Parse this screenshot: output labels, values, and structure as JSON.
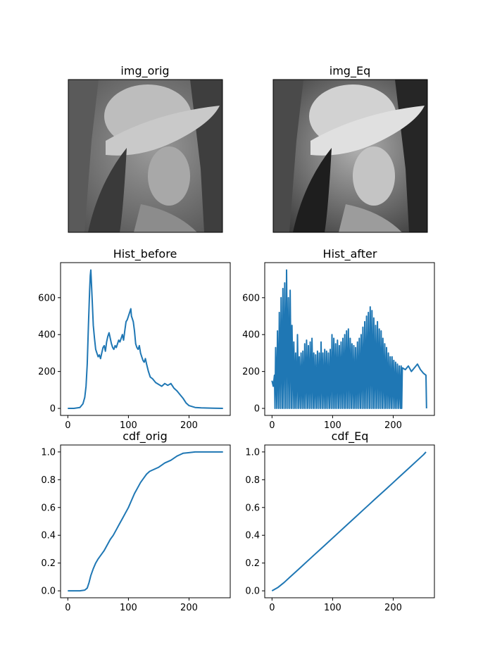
{
  "figure": {
    "titles": {
      "img_orig": "img_orig",
      "img_eq": "img_Eq",
      "hist_before": "Hist_before",
      "hist_after": "Hist_after",
      "cdf_orig": "cdf_orig",
      "cdf_eq": "cdf_Eq"
    },
    "line_color": "#1f77b4"
  },
  "chart_data": [
    {
      "id": "hist_before",
      "type": "line",
      "title": "Hist_before",
      "xlim": [
        -12,
        268
      ],
      "ylim": [
        -38,
        790
      ],
      "xticks": [
        0,
        100,
        200
      ],
      "yticks": [
        0,
        200,
        400,
        600
      ],
      "series": [
        {
          "x": [
            0,
            10,
            20,
            25,
            28,
            30,
            32,
            34,
            36,
            37,
            38,
            40,
            42,
            44,
            46,
            48,
            50,
            52,
            54,
            56,
            58,
            60,
            62,
            64,
            66,
            68,
            70,
            72,
            74,
            76,
            78,
            80,
            82,
            84,
            86,
            88,
            90,
            92,
            94,
            96,
            98,
            100,
            102,
            104,
            105,
            106,
            108,
            110,
            112,
            114,
            116,
            118,
            120,
            122,
            124,
            126,
            128,
            130,
            133,
            136,
            140,
            145,
            150,
            155,
            160,
            165,
            170,
            175,
            180,
            185,
            190,
            195,
            200,
            210,
            220,
            240,
            256
          ],
          "y": [
            0,
            0,
            5,
            25,
            60,
            120,
            240,
            450,
            640,
            720,
            750,
            600,
            450,
            380,
            320,
            300,
            280,
            290,
            270,
            300,
            330,
            340,
            310,
            360,
            390,
            410,
            380,
            350,
            330,
            320,
            340,
            330,
            350,
            370,
            360,
            380,
            400,
            370,
            420,
            470,
            480,
            500,
            520,
            540,
            500,
            490,
            470,
            420,
            350,
            330,
            320,
            340,
            300,
            280,
            260,
            250,
            270,
            240,
            200,
            170,
            160,
            140,
            130,
            120,
            135,
            125,
            135,
            110,
            95,
            75,
            55,
            30,
            15,
            5,
            3,
            1,
            0
          ]
        }
      ]
    },
    {
      "id": "hist_after",
      "type": "line",
      "title": "Hist_after",
      "xlim": [
        -12,
        268
      ],
      "ylim": [
        -38,
        790
      ],
      "xticks": [
        0,
        100,
        200
      ],
      "yticks": [
        0,
        200,
        400,
        600
      ],
      "series": [
        {
          "x": [
            0,
            2,
            4,
            5,
            6,
            8,
            9,
            11,
            12,
            14,
            15,
            17,
            18,
            20,
            21,
            23,
            24,
            26,
            27,
            29,
            30,
            32,
            33,
            35,
            36,
            38,
            39,
            41,
            42,
            44,
            45,
            47,
            48,
            50,
            51,
            53,
            54,
            56,
            57,
            59,
            60,
            62,
            63,
            65,
            66,
            68,
            69,
            71,
            72,
            74,
            75,
            77,
            78,
            80,
            81,
            83,
            84,
            86,
            87,
            89,
            90,
            92,
            93,
            95,
            96,
            98,
            99,
            101,
            102,
            104,
            105,
            107,
            108,
            110,
            111,
            113,
            114,
            116,
            117,
            119,
            120,
            122,
            123,
            125,
            126,
            128,
            129,
            131,
            132,
            134,
            135,
            137,
            138,
            140,
            141,
            143,
            144,
            146,
            147,
            149,
            150,
            152,
            153,
            155,
            156,
            158,
            159,
            161,
            162,
            164,
            165,
            167,
            168,
            170,
            171,
            173,
            174,
            176,
            177,
            179,
            180,
            182,
            183,
            185,
            186,
            188,
            189,
            191,
            192,
            194,
            195,
            197,
            198,
            200,
            201,
            203,
            204,
            206,
            207,
            209,
            210,
            212,
            213,
            214,
            215,
            220,
            225,
            230,
            235,
            240,
            245,
            250,
            254,
            255
          ],
          "y": [
            150,
            120,
            180,
            0,
            330,
            0,
            420,
            0,
            520,
            0,
            600,
            0,
            650,
            0,
            680,
            0,
            750,
            0,
            600,
            0,
            640,
            0,
            450,
            0,
            360,
            0,
            300,
            0,
            400,
            0,
            280,
            0,
            300,
            0,
            310,
            0,
            350,
            0,
            370,
            0,
            340,
            0,
            360,
            0,
            380,
            0,
            300,
            0,
            290,
            0,
            310,
            0,
            300,
            0,
            360,
            0,
            300,
            0,
            320,
            0,
            310,
            0,
            300,
            0,
            320,
            0,
            400,
            0,
            380,
            0,
            350,
            0,
            370,
            0,
            340,
            0,
            360,
            0,
            380,
            0,
            400,
            0,
            420,
            0,
            430,
            0,
            380,
            0,
            350,
            0,
            340,
            0,
            330,
            0,
            360,
            0,
            380,
            0,
            400,
            0,
            440,
            0,
            470,
            0,
            500,
            0,
            520,
            0,
            550,
            0,
            530,
            0,
            490,
            0,
            450,
            0,
            470,
            0,
            430,
            0,
            420,
            0,
            380,
            0,
            350,
            0,
            330,
            0,
            300,
            0,
            280,
            0,
            280,
            0,
            260,
            0,
            250,
            0,
            240,
            0,
            230,
            0,
            230,
            0,
            220,
            210,
            230,
            200,
            220,
            240,
            210,
            190,
            180,
            0
          ]
        }
      ]
    },
    {
      "id": "cdf_orig",
      "type": "line",
      "title": "cdf_orig",
      "xlim": [
        -12,
        268
      ],
      "ylim": [
        -0.05,
        1.05
      ],
      "xticks": [
        0,
        100,
        200
      ],
      "yticks": [
        0.0,
        0.2,
        0.4,
        0.6,
        0.8,
        1.0
      ],
      "series": [
        {
          "x": [
            0,
            20,
            28,
            32,
            35,
            38,
            42,
            46,
            50,
            55,
            60,
            65,
            70,
            75,
            80,
            85,
            90,
            95,
            100,
            105,
            110,
            115,
            120,
            125,
            130,
            135,
            140,
            150,
            160,
            170,
            180,
            190,
            200,
            210,
            220,
            256
          ],
          "y": [
            0.0,
            0.0,
            0.005,
            0.02,
            0.06,
            0.11,
            0.16,
            0.2,
            0.23,
            0.26,
            0.29,
            0.33,
            0.37,
            0.4,
            0.44,
            0.48,
            0.52,
            0.56,
            0.6,
            0.65,
            0.7,
            0.74,
            0.78,
            0.81,
            0.84,
            0.86,
            0.87,
            0.89,
            0.92,
            0.94,
            0.97,
            0.99,
            0.995,
            1.0,
            1.0,
            1.0
          ]
        }
      ]
    },
    {
      "id": "cdf_eq",
      "type": "line",
      "title": "cdf_Eq",
      "xlim": [
        -12,
        268
      ],
      "ylim": [
        -0.05,
        1.05
      ],
      "xticks": [
        0,
        100,
        200
      ],
      "yticks": [
        0.0,
        0.2,
        0.4,
        0.6,
        0.8,
        1.0
      ],
      "series": [
        {
          "x": [
            0,
            10,
            20,
            30,
            40,
            50,
            60,
            70,
            80,
            90,
            100,
            110,
            120,
            130,
            140,
            150,
            160,
            170,
            180,
            190,
            200,
            210,
            220,
            230,
            240,
            250,
            254
          ],
          "y": [
            0.0,
            0.025,
            0.06,
            0.1,
            0.14,
            0.18,
            0.22,
            0.26,
            0.3,
            0.34,
            0.38,
            0.42,
            0.46,
            0.5,
            0.54,
            0.58,
            0.62,
            0.66,
            0.7,
            0.74,
            0.78,
            0.82,
            0.86,
            0.9,
            0.94,
            0.98,
            1.0
          ]
        }
      ]
    }
  ]
}
